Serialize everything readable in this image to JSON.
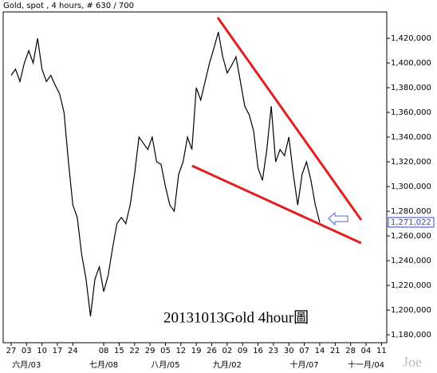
{
  "chart_data": {
    "type": "line",
    "title": "Gold, spot , 4 hours, # 630 / 700",
    "annotation": "20131013Gold 4hour圖",
    "watermark": "Joe",
    "x": [
      0,
      2,
      4,
      6,
      8,
      10,
      12,
      14,
      16,
      18,
      20,
      22,
      24,
      26,
      28,
      30,
      32,
      34,
      36,
      38,
      40,
      42,
      44,
      46,
      48,
      50,
      52,
      54,
      56,
      58,
      60,
      62,
      64,
      66,
      68,
      70,
      72,
      74,
      76,
      78,
      80,
      82,
      84,
      86,
      88,
      90,
      92,
      94,
      96,
      98,
      100,
      102,
      104,
      106,
      108,
      110,
      112,
      114,
      116,
      118,
      120,
      122,
      124,
      126,
      128,
      130,
      132,
      134,
      136,
      138,
      140
    ],
    "series": [
      {
        "name": "Gold",
        "color": "#000000",
        "values": [
          1390000,
          1395000,
          1385000,
          1400000,
          1410000,
          1400000,
          1420000,
          1395000,
          1385000,
          1390000,
          1382000,
          1375000,
          1360000,
          1320000,
          1285000,
          1275000,
          1245000,
          1225000,
          1195000,
          1225000,
          1235000,
          1215000,
          1228000,
          1250000,
          1270000,
          1275000,
          1270000,
          1285000,
          1310000,
          1340000,
          1335000,
          1330000,
          1340000,
          1320000,
          1318000,
          1300000,
          1285000,
          1280000,
          1310000,
          1320000,
          1340000,
          1330000,
          1380000,
          1370000,
          1385000,
          1400000,
          1412000,
          1425000,
          1405000,
          1392000,
          1398000,
          1405000,
          1385000,
          1365000,
          1358000,
          1345000,
          1315000,
          1305000,
          1330000,
          1365000,
          1320000,
          1330000,
          1325000,
          1340000,
          1310000,
          1285000,
          1310000,
          1320000,
          1305000,
          1285000,
          1271022
        ]
      }
    ],
    "last_value": 1271022,
    "last_label": "1,271,022",
    "trendlines": [
      {
        "color": "#e02020",
        "x": [
          93.7,
          158.8
        ],
        "y": [
          1436800,
          1272900
        ]
      },
      {
        "color": "#e02020",
        "x": [
          82.1,
          158.8
        ],
        "y": [
          1316800,
          1254200
        ]
      }
    ],
    "xlim": [
      -3.6,
      170.4
    ],
    "ylim": [
      1173600,
      1441300
    ],
    "xticks": [
      {
        "value": 0,
        "label": "27"
      },
      {
        "value": 7,
        "label": "03"
      },
      {
        "value": 14,
        "label": "10"
      },
      {
        "value": 21,
        "label": "17"
      },
      {
        "value": 28,
        "label": "24"
      },
      {
        "value": 42,
        "label": "08"
      },
      {
        "value": 49,
        "label": "15"
      },
      {
        "value": 56,
        "label": "22"
      },
      {
        "value": 63,
        "label": "29"
      },
      {
        "value": 70,
        "label": "05"
      },
      {
        "value": 77,
        "label": "12"
      },
      {
        "value": 84,
        "label": "19"
      },
      {
        "value": 91,
        "label": "26"
      },
      {
        "value": 98,
        "label": "02"
      },
      {
        "value": 105,
        "label": "09"
      },
      {
        "value": 112,
        "label": "16"
      },
      {
        "value": 119,
        "label": "23"
      },
      {
        "value": 126,
        "label": "30"
      },
      {
        "value": 133,
        "label": "07"
      },
      {
        "value": 140,
        "label": "14"
      },
      {
        "value": 147,
        "label": "21"
      },
      {
        "value": 154,
        "label": "28"
      },
      {
        "value": 161,
        "label": "04"
      },
      {
        "value": 168,
        "label": "11"
      }
    ],
    "month_ticks": [
      {
        "value": 7,
        "label": "六月/03"
      },
      {
        "value": 42,
        "label": "七月/08"
      },
      {
        "value": 70,
        "label": "八月/05"
      },
      {
        "value": 98,
        "label": "九月/02"
      },
      {
        "value": 133,
        "label": "十月/07"
      },
      {
        "value": 161,
        "label": "十一月/04"
      }
    ],
    "yticks": [
      {
        "value": 1180000,
        "label": "1,180,000"
      },
      {
        "value": 1200000,
        "label": "1,200,000"
      },
      {
        "value": 1220000,
        "label": "1,220,000"
      },
      {
        "value": 1240000,
        "label": "1,240,000"
      },
      {
        "value": 1260000,
        "label": "1,260,000"
      },
      {
        "value": 1280000,
        "label": "1,280,000"
      },
      {
        "value": 1300000,
        "label": "1,300,000"
      },
      {
        "value": 1320000,
        "label": "1,320,000"
      },
      {
        "value": 1340000,
        "label": "1,340,000"
      },
      {
        "value": 1360000,
        "label": "1,360,000"
      },
      {
        "value": 1380000,
        "label": "1,380,000"
      },
      {
        "value": 1400000,
        "label": "1,400,000"
      },
      {
        "value": 1420000,
        "label": "1,420,000"
      }
    ],
    "grid": false
  }
}
